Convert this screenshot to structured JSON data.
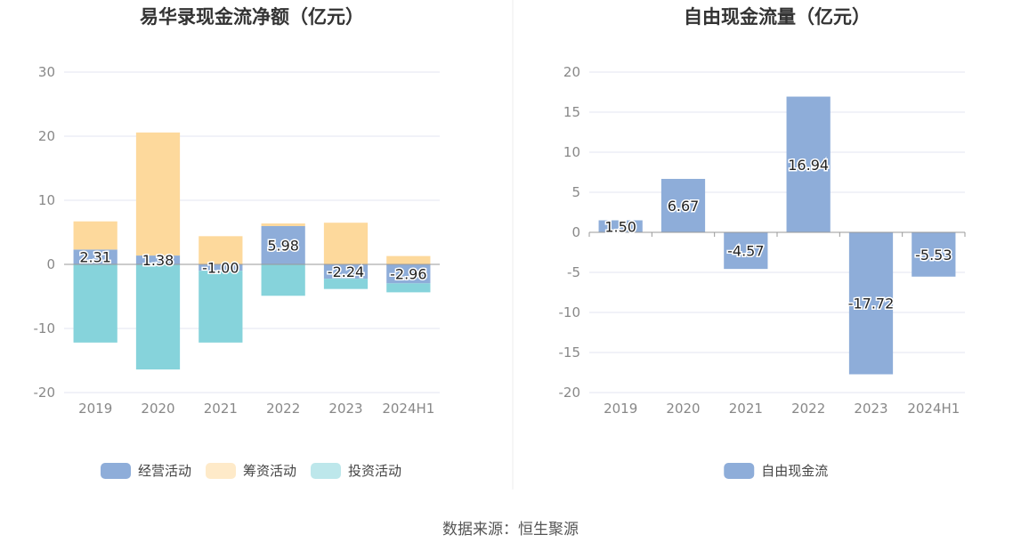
{
  "source_text": "数据来源：恒生聚源",
  "colors": {
    "operating": "#8eadd9",
    "financing": "#fdd99c",
    "investing": "#86d3db",
    "free_cash": "#8eadd9",
    "grid": "#e3e6f0",
    "axis_text": "#888888",
    "title": "#333333"
  },
  "chart_data": [
    {
      "type": "bar",
      "stacked": true,
      "title": "易华录现金流净额（亿元）",
      "categories": [
        "2019",
        "2020",
        "2021",
        "2022",
        "2023",
        "2024H1"
      ],
      "ylim": [
        -20,
        30
      ],
      "yticks": [
        30,
        20,
        10,
        0,
        -10,
        -20
      ],
      "legend_position": "bottom",
      "series": [
        {
          "name": "经营活动",
          "color_key": "operating",
          "values": [
            2.31,
            1.38,
            -1.0,
            5.98,
            -2.24,
            -2.96
          ],
          "labels": [
            "2.31",
            "1.38",
            "-1.00",
            "5.98",
            "-2.24",
            "-2.96"
          ]
        },
        {
          "name": "筹资活动",
          "color_key": "financing",
          "values": [
            4.4,
            19.2,
            4.4,
            0.4,
            6.5,
            1.3
          ]
        },
        {
          "name": "投资活动",
          "color_key": "investing",
          "values": [
            -12.2,
            -16.4,
            -11.2,
            -4.9,
            -1.6,
            -1.4
          ]
        }
      ]
    },
    {
      "type": "bar",
      "title": "自由现金流量（亿元）",
      "categories": [
        "2019",
        "2020",
        "2021",
        "2022",
        "2023",
        "2024H1"
      ],
      "ylim": [
        -20,
        20
      ],
      "yticks": [
        20,
        15,
        10,
        5,
        0,
        -5,
        -10,
        -15,
        -20
      ],
      "legend_position": "bottom",
      "series": [
        {
          "name": "自由现金流",
          "color_key": "free_cash",
          "values": [
            1.5,
            6.67,
            -4.57,
            16.94,
            -17.72,
            -5.53
          ],
          "labels": [
            "1.50",
            "6.67",
            "-4.57",
            "16.94",
            "-17.72",
            "-5.53"
          ]
        }
      ]
    }
  ]
}
